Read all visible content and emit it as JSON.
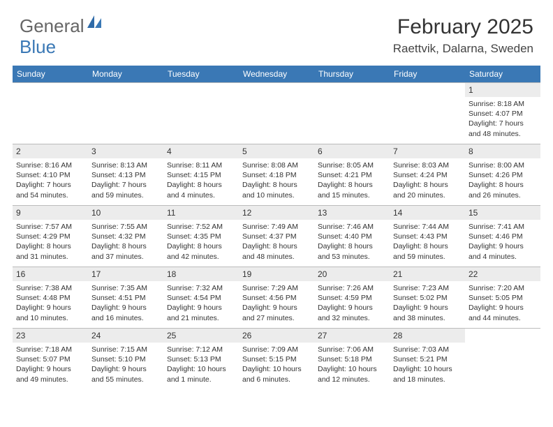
{
  "brand": {
    "word1": "General",
    "word2": "Blue"
  },
  "title": "February 2025",
  "location": "Raettvik, Dalarna, Sweden",
  "colors": {
    "header_bg": "#3a78b5",
    "header_text": "#ffffff",
    "daynum_bg": "#ececec",
    "border": "#bbbbbb",
    "text": "#333333"
  },
  "weekdays": [
    "Sunday",
    "Monday",
    "Tuesday",
    "Wednesday",
    "Thursday",
    "Friday",
    "Saturday"
  ],
  "weeks": [
    [
      null,
      null,
      null,
      null,
      null,
      null,
      {
        "n": "1",
        "sr": "Sunrise: 8:18 AM",
        "ss": "Sunset: 4:07 PM",
        "dl": "Daylight: 7 hours and 48 minutes."
      }
    ],
    [
      {
        "n": "2",
        "sr": "Sunrise: 8:16 AM",
        "ss": "Sunset: 4:10 PM",
        "dl": "Daylight: 7 hours and 54 minutes."
      },
      {
        "n": "3",
        "sr": "Sunrise: 8:13 AM",
        "ss": "Sunset: 4:13 PM",
        "dl": "Daylight: 7 hours and 59 minutes."
      },
      {
        "n": "4",
        "sr": "Sunrise: 8:11 AM",
        "ss": "Sunset: 4:15 PM",
        "dl": "Daylight: 8 hours and 4 minutes."
      },
      {
        "n": "5",
        "sr": "Sunrise: 8:08 AM",
        "ss": "Sunset: 4:18 PM",
        "dl": "Daylight: 8 hours and 10 minutes."
      },
      {
        "n": "6",
        "sr": "Sunrise: 8:05 AM",
        "ss": "Sunset: 4:21 PM",
        "dl": "Daylight: 8 hours and 15 minutes."
      },
      {
        "n": "7",
        "sr": "Sunrise: 8:03 AM",
        "ss": "Sunset: 4:24 PM",
        "dl": "Daylight: 8 hours and 20 minutes."
      },
      {
        "n": "8",
        "sr": "Sunrise: 8:00 AM",
        "ss": "Sunset: 4:26 PM",
        "dl": "Daylight: 8 hours and 26 minutes."
      }
    ],
    [
      {
        "n": "9",
        "sr": "Sunrise: 7:57 AM",
        "ss": "Sunset: 4:29 PM",
        "dl": "Daylight: 8 hours and 31 minutes."
      },
      {
        "n": "10",
        "sr": "Sunrise: 7:55 AM",
        "ss": "Sunset: 4:32 PM",
        "dl": "Daylight: 8 hours and 37 minutes."
      },
      {
        "n": "11",
        "sr": "Sunrise: 7:52 AM",
        "ss": "Sunset: 4:35 PM",
        "dl": "Daylight: 8 hours and 42 minutes."
      },
      {
        "n": "12",
        "sr": "Sunrise: 7:49 AM",
        "ss": "Sunset: 4:37 PM",
        "dl": "Daylight: 8 hours and 48 minutes."
      },
      {
        "n": "13",
        "sr": "Sunrise: 7:46 AM",
        "ss": "Sunset: 4:40 PM",
        "dl": "Daylight: 8 hours and 53 minutes."
      },
      {
        "n": "14",
        "sr": "Sunrise: 7:44 AM",
        "ss": "Sunset: 4:43 PM",
        "dl": "Daylight: 8 hours and 59 minutes."
      },
      {
        "n": "15",
        "sr": "Sunrise: 7:41 AM",
        "ss": "Sunset: 4:46 PM",
        "dl": "Daylight: 9 hours and 4 minutes."
      }
    ],
    [
      {
        "n": "16",
        "sr": "Sunrise: 7:38 AM",
        "ss": "Sunset: 4:48 PM",
        "dl": "Daylight: 9 hours and 10 minutes."
      },
      {
        "n": "17",
        "sr": "Sunrise: 7:35 AM",
        "ss": "Sunset: 4:51 PM",
        "dl": "Daylight: 9 hours and 16 minutes."
      },
      {
        "n": "18",
        "sr": "Sunrise: 7:32 AM",
        "ss": "Sunset: 4:54 PM",
        "dl": "Daylight: 9 hours and 21 minutes."
      },
      {
        "n": "19",
        "sr": "Sunrise: 7:29 AM",
        "ss": "Sunset: 4:56 PM",
        "dl": "Daylight: 9 hours and 27 minutes."
      },
      {
        "n": "20",
        "sr": "Sunrise: 7:26 AM",
        "ss": "Sunset: 4:59 PM",
        "dl": "Daylight: 9 hours and 32 minutes."
      },
      {
        "n": "21",
        "sr": "Sunrise: 7:23 AM",
        "ss": "Sunset: 5:02 PM",
        "dl": "Daylight: 9 hours and 38 minutes."
      },
      {
        "n": "22",
        "sr": "Sunrise: 7:20 AM",
        "ss": "Sunset: 5:05 PM",
        "dl": "Daylight: 9 hours and 44 minutes."
      }
    ],
    [
      {
        "n": "23",
        "sr": "Sunrise: 7:18 AM",
        "ss": "Sunset: 5:07 PM",
        "dl": "Daylight: 9 hours and 49 minutes."
      },
      {
        "n": "24",
        "sr": "Sunrise: 7:15 AM",
        "ss": "Sunset: 5:10 PM",
        "dl": "Daylight: 9 hours and 55 minutes."
      },
      {
        "n": "25",
        "sr": "Sunrise: 7:12 AM",
        "ss": "Sunset: 5:13 PM",
        "dl": "Daylight: 10 hours and 1 minute."
      },
      {
        "n": "26",
        "sr": "Sunrise: 7:09 AM",
        "ss": "Sunset: 5:15 PM",
        "dl": "Daylight: 10 hours and 6 minutes."
      },
      {
        "n": "27",
        "sr": "Sunrise: 7:06 AM",
        "ss": "Sunset: 5:18 PM",
        "dl": "Daylight: 10 hours and 12 minutes."
      },
      {
        "n": "28",
        "sr": "Sunrise: 7:03 AM",
        "ss": "Sunset: 5:21 PM",
        "dl": "Daylight: 10 hours and 18 minutes."
      },
      null
    ]
  ]
}
